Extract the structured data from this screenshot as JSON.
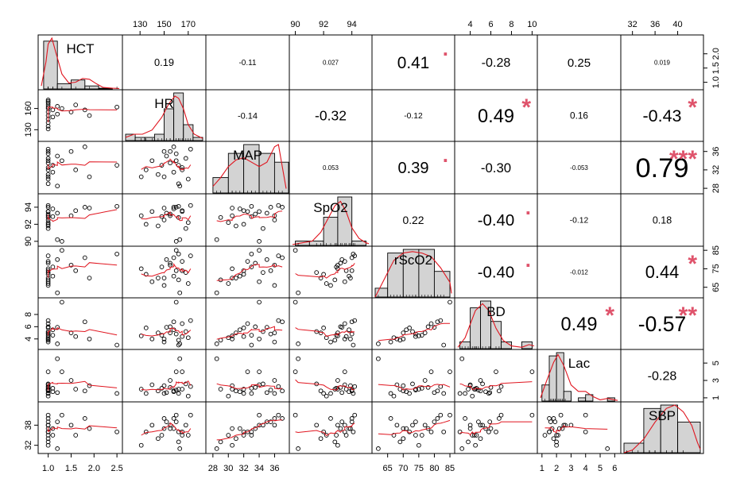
{
  "chart_data": {
    "type": "scatter-matrix",
    "variables": [
      "HCT",
      "HR",
      "MAP",
      "SpO2",
      "rScO2",
      "BD",
      "Lac",
      "SBP"
    ],
    "ranges": {
      "HCT": [
        0.85,
        2.55
      ],
      "HR": [
        118,
        182
      ],
      "MAP": [
        27.5,
        37.5
      ],
      "SpO2": [
        89.8,
        95.2
      ],
      "rScO2": [
        61,
        85.5
      ],
      "BD": [
        2.8,
        10.2
      ],
      "Lac": [
        0.9,
        6.2
      ],
      "SBP": [
        30.5,
        44
      ]
    },
    "axes": {
      "top": {
        "HR": {
          "ticks": [
            130,
            150,
            170
          ],
          "labels": [
            "130",
            "150",
            "170"
          ]
        },
        "SpO2": {
          "ticks": [
            90,
            92,
            94
          ],
          "labels": [
            "90",
            "92",
            "94"
          ]
        },
        "BD": {
          "ticks": [
            4,
            6,
            8,
            10
          ],
          "labels": [
            "4",
            "6",
            "8",
            "10"
          ]
        },
        "SBP": {
          "ticks": [
            32,
            36,
            40
          ],
          "labels": [
            "32",
            "36",
            "40"
          ]
        }
      },
      "bottom": {
        "HCT": {
          "ticks": [
            1.0,
            1.5,
            2.0,
            2.5
          ],
          "labels": [
            "1.0",
            "1.5",
            "2.0",
            "2.5"
          ]
        },
        "MAP": {
          "ticks": [
            28,
            30,
            32,
            34,
            36
          ],
          "labels": [
            "28",
            "30",
            "32",
            "34",
            "36"
          ]
        },
        "rScO2": {
          "ticks": [
            65,
            70,
            75,
            80,
            85
          ],
          "labels": [
            "65",
            "70",
            "75",
            "80",
            "85"
          ]
        },
        "Lac": {
          "ticks": [
            1,
            2,
            3,
            4,
            5,
            6
          ],
          "labels": [
            "1",
            "2",
            "3",
            "4",
            "5",
            "6"
          ]
        }
      },
      "left": {
        "HR": {
          "ticks": [
            130,
            160
          ],
          "labels": [
            "130",
            "160"
          ]
        },
        "SpO2": {
          "ticks": [
            90,
            92,
            94
          ],
          "labels": [
            "90",
            "92",
            "94"
          ]
        },
        "BD": {
          "ticks": [
            4,
            6,
            8
          ],
          "labels": [
            "4",
            "6",
            "8"
          ]
        },
        "SBP": {
          "ticks": [
            32,
            38
          ],
          "labels": [
            "32",
            "38"
          ]
        }
      },
      "right": {
        "HCT": {
          "ticks": [
            1.0,
            1.5,
            2.0
          ],
          "labels": [
            "1.0",
            "1.5",
            "2.0"
          ],
          "value_axis": [
            0.85,
            2.55
          ]
        },
        "MAP": {
          "ticks": [
            28,
            32,
            36
          ],
          "labels": [
            "28",
            "32",
            "36"
          ]
        },
        "rScO2": {
          "ticks": [
            65,
            75,
            85
          ],
          "labels": [
            "65",
            "75",
            "85"
          ]
        },
        "Lac": {
          "ticks": [
            1,
            3,
            5
          ],
          "labels": [
            "1",
            "3",
            "5"
          ]
        }
      }
    },
    "correlations": [
      {
        "row": 0,
        "col": 1,
        "label": "0.19",
        "stars": ""
      },
      {
        "row": 0,
        "col": 2,
        "label": "-0.11",
        "stars": ""
      },
      {
        "row": 0,
        "col": 3,
        "label": "0.027",
        "stars": ""
      },
      {
        "row": 0,
        "col": 4,
        "label": "0.41",
        "stars": "."
      },
      {
        "row": 0,
        "col": 5,
        "label": "-0.28",
        "stars": ""
      },
      {
        "row": 0,
        "col": 6,
        "label": "0.25",
        "stars": ""
      },
      {
        "row": 0,
        "col": 7,
        "label": "0.019",
        "stars": ""
      },
      {
        "row": 1,
        "col": 2,
        "label": "-0.14",
        "stars": ""
      },
      {
        "row": 1,
        "col": 3,
        "label": "-0.32",
        "stars": ""
      },
      {
        "row": 1,
        "col": 4,
        "label": "-0.12",
        "stars": ""
      },
      {
        "row": 1,
        "col": 5,
        "label": "0.49",
        "stars": "*"
      },
      {
        "row": 1,
        "col": 6,
        "label": "0.16",
        "stars": ""
      },
      {
        "row": 1,
        "col": 7,
        "label": "-0.43",
        "stars": "*"
      },
      {
        "row": 2,
        "col": 3,
        "label": "0.053",
        "stars": ""
      },
      {
        "row": 2,
        "col": 4,
        "label": "0.39",
        "stars": "."
      },
      {
        "row": 2,
        "col": 5,
        "label": "-0.30",
        "stars": ""
      },
      {
        "row": 2,
        "col": 6,
        "label": "-0.053",
        "stars": ""
      },
      {
        "row": 2,
        "col": 7,
        "label": "0.79",
        "stars": "***"
      },
      {
        "row": 3,
        "col": 4,
        "label": "0.22",
        "stars": ""
      },
      {
        "row": 3,
        "col": 5,
        "label": "-0.40",
        "stars": "."
      },
      {
        "row": 3,
        "col": 6,
        "label": "-0.12",
        "stars": ""
      },
      {
        "row": 3,
        "col": 7,
        "label": "0.18",
        "stars": ""
      },
      {
        "row": 4,
        "col": 5,
        "label": "-0.40",
        "stars": "."
      },
      {
        "row": 4,
        "col": 6,
        "label": "-0.012",
        "stars": ""
      },
      {
        "row": 4,
        "col": 7,
        "label": "0.44",
        "stars": "*"
      },
      {
        "row": 5,
        "col": 6,
        "label": "0.49",
        "stars": "*"
      },
      {
        "row": 5,
        "col": 7,
        "label": "-0.57",
        "stars": "**"
      },
      {
        "row": 6,
        "col": 7,
        "label": "-0.28",
        "stars": ""
      }
    ],
    "histograms": {
      "HCT": {
        "edges": [
          0.9,
          1.2,
          1.5,
          1.8,
          2.1,
          2.4,
          2.6
        ],
        "density": [
          3.2,
          0.35,
          0.6,
          0.2,
          0.05,
          0.0
        ],
        "curve": [
          [
            0.85,
            0.2
          ],
          [
            0.95,
            1.8
          ],
          [
            1.0,
            3.0
          ],
          [
            1.08,
            3.4
          ],
          [
            1.16,
            2.5
          ],
          [
            1.3,
            1.0
          ],
          [
            1.45,
            0.4
          ],
          [
            1.6,
            0.45
          ],
          [
            1.75,
            0.7
          ],
          [
            1.9,
            0.65
          ],
          [
            2.05,
            0.35
          ],
          [
            2.2,
            0.1
          ],
          [
            2.4,
            0.05
          ],
          [
            2.55,
            0.03
          ]
        ]
      },
      "HR": {
        "edges": [
          118,
          126,
          134,
          142,
          150,
          158,
          166,
          174,
          182
        ],
        "density": [
          0.006,
          0.003,
          0.003,
          0.006,
          0.03,
          0.045,
          0.015,
          0.003
        ],
        "curve": [
          [
            118,
            0.003
          ],
          [
            125,
            0.006
          ],
          [
            132,
            0.006
          ],
          [
            140,
            0.01
          ],
          [
            148,
            0.022
          ],
          [
            154,
            0.035
          ],
          [
            159,
            0.042
          ],
          [
            162,
            0.04
          ],
          [
            166,
            0.03
          ],
          [
            170,
            0.015
          ],
          [
            175,
            0.006
          ],
          [
            182,
            0.002
          ]
        ]
      },
      "MAP": {
        "edges": [
          28,
          30,
          32,
          34,
          36,
          38
        ],
        "density": [
          0.07,
          0.18,
          0.22,
          0.18,
          0.14
        ],
        "curve": [
          [
            28,
            0.03
          ],
          [
            29,
            0.07
          ],
          [
            30,
            0.12
          ],
          [
            31,
            0.15
          ],
          [
            32,
            0.16
          ],
          [
            33,
            0.14
          ],
          [
            34,
            0.12
          ],
          [
            35,
            0.14
          ],
          [
            36,
            0.21
          ],
          [
            36.5,
            0.22
          ],
          [
            37,
            0.12
          ],
          [
            37.5,
            0.02
          ]
        ]
      },
      "SpO2": {
        "edges": [
          90,
          91,
          92,
          93,
          94,
          95
        ],
        "density": [
          0.05,
          0.05,
          0.32,
          0.55,
          0.05
        ],
        "curve": [
          [
            89.8,
            0.01
          ],
          [
            90.5,
            0.03
          ],
          [
            91.2,
            0.05
          ],
          [
            91.8,
            0.15
          ],
          [
            92.3,
            0.3
          ],
          [
            92.8,
            0.45
          ],
          [
            93.2,
            0.5
          ],
          [
            93.6,
            0.38
          ],
          [
            94.0,
            0.2
          ],
          [
            94.5,
            0.08
          ],
          [
            95.0,
            0.03
          ],
          [
            95.2,
            0.02
          ]
        ]
      },
      "rScO2": {
        "edges": [
          61,
          65,
          70,
          75,
          80,
          85
        ],
        "density": [
          0.012,
          0.06,
          0.065,
          0.065,
          0.035
        ],
        "curve": [
          [
            61,
            0.0
          ],
          [
            64,
            0.025
          ],
          [
            67,
            0.05
          ],
          [
            70,
            0.06
          ],
          [
            73,
            0.062
          ],
          [
            76,
            0.06
          ],
          [
            79,
            0.055
          ],
          [
            82,
            0.04
          ],
          [
            85,
            0.02
          ],
          [
            85.5,
            0.005
          ]
        ]
      },
      "BD": {
        "edges": [
          3,
          4,
          5,
          6,
          7,
          8,
          9,
          10
        ],
        "density": [
          0.05,
          0.3,
          0.35,
          0.2,
          0.05,
          0.0,
          0.05
        ],
        "curve": [
          [
            2.8,
            0.01
          ],
          [
            3.5,
            0.08
          ],
          [
            4.5,
            0.28
          ],
          [
            5.2,
            0.33
          ],
          [
            5.8,
            0.28
          ],
          [
            6.5,
            0.15
          ],
          [
            7.2,
            0.06
          ],
          [
            8,
            0.02
          ],
          [
            9,
            0.01
          ],
          [
            9.7,
            0.03
          ],
          [
            10.2,
            0.02
          ]
        ]
      },
      "Lac": {
        "edges": [
          1.0,
          1.5,
          2.0,
          2.5,
          3.0,
          3.5,
          4.0,
          4.5,
          5.0,
          5.5,
          6.0
        ],
        "density": [
          0.25,
          0.7,
          0.75,
          0.15,
          0.0,
          0.05,
          0.1,
          0.0,
          0.0,
          0.05
        ],
        "curve": [
          [
            0.9,
            0.05
          ],
          [
            1.3,
            0.3
          ],
          [
            1.8,
            0.6
          ],
          [
            2.1,
            0.72
          ],
          [
            2.5,
            0.55
          ],
          [
            3,
            0.25
          ],
          [
            3.5,
            0.15
          ],
          [
            4,
            0.15
          ],
          [
            4.5,
            0.07
          ],
          [
            5,
            0.02
          ],
          [
            5.5,
            0.04
          ],
          [
            6.2,
            0.01
          ]
        ]
      },
      "SBP": {
        "edges": [
          30.5,
          34,
          37,
          40,
          44
        ],
        "density": [
          0.028,
          0.13,
          0.14,
          0.09
        ],
        "curve": [
          [
            30.5,
            0.0
          ],
          [
            32,
            0.008
          ],
          [
            34,
            0.04
          ],
          [
            36,
            0.09
          ],
          [
            38,
            0.13
          ],
          [
            39.5,
            0.14
          ],
          [
            41,
            0.12
          ],
          [
            42.5,
            0.08
          ],
          [
            43.5,
            0.03
          ],
          [
            44,
            0.01
          ]
        ]
      }
    },
    "observations": [
      [
        1.0,
        131,
        30.5,
        93.0,
        75,
        4.5,
        2.0,
        32
      ],
      [
        1.0,
        135,
        32.0,
        92.0,
        72,
        5.8,
        1.5,
        36
      ],
      [
        1.0,
        140,
        34.0,
        93.5,
        68,
        4.0,
        2.5,
        38
      ],
      [
        1.0,
        145,
        31.0,
        91.8,
        70,
        5.0,
        1.8,
        34
      ],
      [
        1.0,
        150,
        36.0,
        92.5,
        66,
        3.5,
        1.5,
        40
      ],
      [
        1.0,
        155,
        33.5,
        93.2,
        78,
        6.0,
        2.2,
        37
      ],
      [
        1.0,
        160,
        35.5,
        94.0,
        74,
        4.8,
        1.9,
        39
      ],
      [
        1.0,
        162,
        29.0,
        92.8,
        69,
        3.8,
        2.0,
        33
      ],
      [
        1.0,
        165,
        32.5,
        93.5,
        79,
        6.5,
        4.0,
        36
      ],
      [
        1.0,
        168,
        34.5,
        91.5,
        73,
        5.2,
        2.6,
        38
      ],
      [
        1.0,
        170,
        30.0,
        92.2,
        67,
        4.2,
        1.2,
        35
      ],
      [
        1.0,
        172,
        36.5,
        94.2,
        82,
        7.0,
        2.3,
        41
      ],
      [
        1.1,
        158,
        31.5,
        93.8,
        71,
        5.5,
        1.7,
        37
      ],
      [
        1.1,
        148,
        33.0,
        92.9,
        76,
        4.6,
        2.1,
        35
      ],
      [
        1.2,
        152,
        35.0,
        93.3,
        80,
        5.9,
        1.6,
        39
      ],
      [
        1.2,
        163,
        28.5,
        90.2,
        62,
        3.2,
        5.5,
        31
      ],
      [
        1.3,
        160,
        34.0,
        90.0,
        85,
        10.0,
        4.0,
        41
      ],
      [
        1.5,
        155,
        36.0,
        93.0,
        77,
        5.0,
        3.0,
        38
      ],
      [
        1.6,
        165,
        32.0,
        93.6,
        74,
        4.4,
        2.0,
        35
      ],
      [
        1.8,
        158,
        37.0,
        94.0,
        81,
        6.8,
        1.8,
        40
      ],
      [
        1.9,
        150,
        30.5,
        93.9,
        70,
        4.0,
        2.4,
        37
      ],
      [
        2.5,
        162,
        33.0,
        94.1,
        83,
        3.0,
        1.5,
        36
      ]
    ]
  }
}
